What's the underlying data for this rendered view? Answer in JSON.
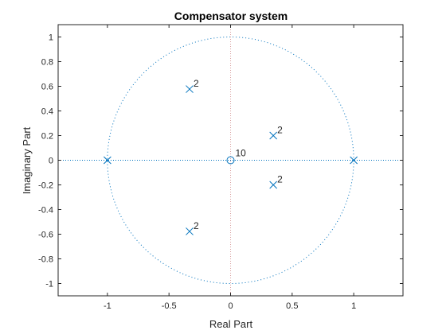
{
  "chart_data": {
    "type": "scatter",
    "title": "Compensator system",
    "xlabel": "Real Part",
    "ylabel": "Imaginary Part",
    "xlim": [
      -1.4,
      1.4
    ],
    "ylim": [
      -1.1,
      1.1
    ],
    "x_ticks": [
      -1,
      -0.5,
      0,
      0.5,
      1
    ],
    "x_tick_labels": [
      "-1",
      "-0.5",
      "0",
      "0.5",
      "1"
    ],
    "y_ticks": [
      -1,
      -0.8,
      -0.6,
      -0.4,
      -0.2,
      0,
      0.2,
      0.4,
      0.6,
      0.8,
      1
    ],
    "y_tick_labels": [
      "-1",
      "-0.8",
      "-0.6",
      "-0.4",
      "-0.2",
      "0",
      "0.2",
      "0.4",
      "0.6",
      "0.8",
      "1"
    ],
    "grid": false,
    "unit_circle": true,
    "marker_color": "#0072BD",
    "poles": [
      {
        "x": -0.333,
        "y": 0.577,
        "multiplicity": "2"
      },
      {
        "x": -0.333,
        "y": -0.577,
        "multiplicity": "2"
      },
      {
        "x": 0.347,
        "y": 0.2,
        "multiplicity": "2"
      },
      {
        "x": 0.347,
        "y": -0.2,
        "multiplicity": "2"
      },
      {
        "x": -1,
        "y": 0,
        "multiplicity": ""
      },
      {
        "x": 1,
        "y": 0,
        "multiplicity": ""
      }
    ],
    "zeros": [
      {
        "x": 0,
        "y": 0,
        "multiplicity": "10"
      }
    ]
  }
}
